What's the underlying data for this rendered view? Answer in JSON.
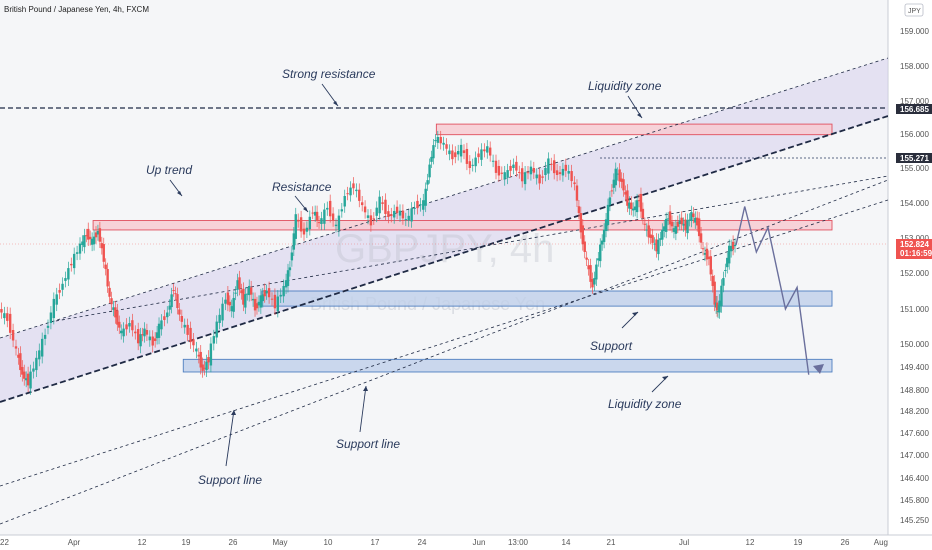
{
  "chart_title": "British Pound / Japanese Yen, 4h, FXCM",
  "watermark": "GBPJPY, 4h",
  "watermark_sub": "British Pound / Japanese Yen",
  "currency_badge": "JPY",
  "chart_data": {
    "type": "line",
    "title": "British Pound / Japanese Yen, 4h, FXCM",
    "x_ticks": [
      "22",
      "Apr",
      "12",
      "19",
      "26",
      "May",
      "10",
      "17",
      "24",
      "Jun",
      "13:00",
      "14",
      "21",
      "Jul",
      "12",
      "19",
      "26",
      "Aug"
    ],
    "y_ticks": [
      159.0,
      158.0,
      157.0,
      156.0,
      155.0,
      154.0,
      153.0,
      152.0,
      151.0,
      150.0,
      149.4,
      148.8,
      148.2,
      147.6,
      147.0,
      146.4,
      145.8,
      145.25
    ],
    "ylim": [
      145.0,
      159.5
    ],
    "current_price": "152.824",
    "countdown": "01:16:59",
    "marked_levels": [
      "156.685",
      "155.271"
    ],
    "price_series": [
      {
        "t": 0.0,
        "v": 151.0
      },
      {
        "t": 0.3,
        "v": 150.7
      },
      {
        "t": 0.6,
        "v": 149.8
      },
      {
        "t": 0.8,
        "v": 149.2
      },
      {
        "t": 1.0,
        "v": 149.0
      },
      {
        "t": 1.3,
        "v": 149.6
      },
      {
        "t": 1.6,
        "v": 150.3
      },
      {
        "t": 1.9,
        "v": 151.2
      },
      {
        "t": 2.2,
        "v": 151.7
      },
      {
        "t": 2.5,
        "v": 152.3
      },
      {
        "t": 2.8,
        "v": 152.8
      },
      {
        "t": 3.0,
        "v": 153.1
      },
      {
        "t": 3.2,
        "v": 152.9
      },
      {
        "t": 3.4,
        "v": 153.2
      },
      {
        "t": 3.6,
        "v": 152.4
      },
      {
        "t": 3.8,
        "v": 151.3
      },
      {
        "t": 4.0,
        "v": 150.8
      },
      {
        "t": 4.2,
        "v": 150.3
      },
      {
        "t": 4.5,
        "v": 150.6
      },
      {
        "t": 4.8,
        "v": 150.1
      },
      {
        "t": 5.0,
        "v": 150.4
      },
      {
        "t": 5.3,
        "v": 150.0
      },
      {
        "t": 5.5,
        "v": 150.5
      },
      {
        "t": 5.8,
        "v": 150.9
      },
      {
        "t": 6.0,
        "v": 151.6
      },
      {
        "t": 6.2,
        "v": 150.8
      },
      {
        "t": 6.5,
        "v": 150.3
      },
      {
        "t": 6.8,
        "v": 149.8
      },
      {
        "t": 7.0,
        "v": 149.3
      },
      {
        "t": 7.2,
        "v": 149.6
      },
      {
        "t": 7.5,
        "v": 150.6
      },
      {
        "t": 7.8,
        "v": 151.3
      },
      {
        "t": 8.0,
        "v": 151.0
      },
      {
        "t": 8.2,
        "v": 151.8
      },
      {
        "t": 8.4,
        "v": 151.2
      },
      {
        "t": 8.6,
        "v": 151.6
      },
      {
        "t": 8.8,
        "v": 151.0
      },
      {
        "t": 9.0,
        "v": 151.3
      },
      {
        "t": 9.2,
        "v": 151.5
      },
      {
        "t": 9.5,
        "v": 151.1
      },
      {
        "t": 9.8,
        "v": 151.6
      },
      {
        "t": 10.0,
        "v": 152.2
      },
      {
        "t": 10.2,
        "v": 153.6
      },
      {
        "t": 10.5,
        "v": 153.1
      },
      {
        "t": 10.8,
        "v": 153.8
      },
      {
        "t": 11.0,
        "v": 153.4
      },
      {
        "t": 11.3,
        "v": 153.9
      },
      {
        "t": 11.6,
        "v": 153.3
      },
      {
        "t": 11.9,
        "v": 154.2
      },
      {
        "t": 12.2,
        "v": 154.5
      },
      {
        "t": 12.5,
        "v": 153.9
      },
      {
        "t": 12.8,
        "v": 153.4
      },
      {
        "t": 13.1,
        "v": 154.1
      },
      {
        "t": 13.4,
        "v": 153.6
      },
      {
        "t": 13.7,
        "v": 153.8
      },
      {
        "t": 14.0,
        "v": 153.5
      },
      {
        "t": 14.3,
        "v": 153.9
      },
      {
        "t": 14.6,
        "v": 154.0
      },
      {
        "t": 14.8,
        "v": 155.1
      },
      {
        "t": 15.0,
        "v": 155.9
      },
      {
        "t": 15.3,
        "v": 155.7
      },
      {
        "t": 15.6,
        "v": 155.3
      },
      {
        "t": 15.9,
        "v": 155.6
      },
      {
        "t": 16.2,
        "v": 155.0
      },
      {
        "t": 16.5,
        "v": 155.4
      },
      {
        "t": 16.8,
        "v": 155.6
      },
      {
        "t": 17.1,
        "v": 154.9
      },
      {
        "t": 17.4,
        "v": 154.8
      },
      {
        "t": 17.7,
        "v": 155.1
      },
      {
        "t": 18.0,
        "v": 154.7
      },
      {
        "t": 18.3,
        "v": 155.0
      },
      {
        "t": 18.6,
        "v": 154.6
      },
      {
        "t": 18.9,
        "v": 155.2
      },
      {
        "t": 19.2,
        "v": 154.8
      },
      {
        "t": 19.5,
        "v": 155.0
      },
      {
        "t": 19.8,
        "v": 154.5
      },
      {
        "t": 20.0,
        "v": 153.2
      },
      {
        "t": 20.2,
        "v": 152.3
      },
      {
        "t": 20.4,
        "v": 151.6
      },
      {
        "t": 20.6,
        "v": 152.5
      },
      {
        "t": 20.8,
        "v": 153.2
      },
      {
        "t": 21.0,
        "v": 154.2
      },
      {
        "t": 21.2,
        "v": 154.9
      },
      {
        "t": 21.4,
        "v": 154.6
      },
      {
        "t": 21.6,
        "v": 154.0
      },
      {
        "t": 21.8,
        "v": 153.8
      },
      {
        "t": 22.0,
        "v": 154.1
      },
      {
        "t": 22.2,
        "v": 153.3
      },
      {
        "t": 22.4,
        "v": 153.0
      },
      {
        "t": 22.6,
        "v": 152.7
      },
      {
        "t": 22.8,
        "v": 153.2
      },
      {
        "t": 23.0,
        "v": 153.6
      },
      {
        "t": 23.2,
        "v": 153.2
      },
      {
        "t": 23.4,
        "v": 153.5
      },
      {
        "t": 23.6,
        "v": 153.3
      },
      {
        "t": 23.8,
        "v": 153.7
      },
      {
        "t": 24.0,
        "v": 153.4
      },
      {
        "t": 24.2,
        "v": 152.6
      },
      {
        "t": 24.4,
        "v": 152.4
      },
      {
        "t": 24.6,
        "v": 151.2
      },
      {
        "t": 24.7,
        "v": 150.9
      },
      {
        "t": 24.9,
        "v": 151.9
      },
      {
        "t": 25.1,
        "v": 152.7
      },
      {
        "t": 25.3,
        "v": 152.8
      }
    ]
  },
  "projection": [
    {
      "t": 25.3,
      "v": 152.8
    },
    {
      "t": 25.6,
      "v": 153.9
    },
    {
      "t": 26.0,
      "v": 152.6
    },
    {
      "t": 26.4,
      "v": 153.3
    },
    {
      "t": 27.0,
      "v": 151.0
    },
    {
      "t": 27.4,
      "v": 151.6
    },
    {
      "t": 27.8,
      "v": 149.2
    }
  ],
  "zones": [
    {
      "id": "liquidity-top",
      "kind": "resistance",
      "v_top": 156.3,
      "v_bot": 155.98,
      "t_start": 15.0,
      "t_end": 28.6
    },
    {
      "id": "resistance",
      "kind": "resistance",
      "v_top": 153.5,
      "v_bot": 153.23,
      "t_start": 3.2,
      "t_end": 28.6
    },
    {
      "id": "support",
      "kind": "support",
      "v_top": 151.5,
      "v_bot": 151.08,
      "t_start": 9.0,
      "t_end": 28.6
    },
    {
      "id": "liquidity-bottom",
      "kind": "support",
      "v_top": 149.6,
      "v_bot": 149.27,
      "t_start": 6.3,
      "t_end": 28.6
    }
  ],
  "annotations": [
    {
      "id": "strong-resistance",
      "text": "Strong resistance"
    },
    {
      "id": "liquidity-zone-top",
      "text": "Liquidity zone"
    },
    {
      "id": "up-trend",
      "text": "Up trend"
    },
    {
      "id": "resistance",
      "text": "Resistance"
    },
    {
      "id": "support",
      "text": "Support"
    },
    {
      "id": "liquidity-zone-bottom",
      "text": "Liquidity zone"
    },
    {
      "id": "support-line-1",
      "text": "Support line"
    },
    {
      "id": "support-line-2",
      "text": "Support line"
    }
  ],
  "colors": {
    "bull": "#26a69a",
    "bear": "#ef5350",
    "resistance_fill": "#f7c9cf",
    "resistance_stroke": "#e0505f",
    "support_fill": "#bfd0ea",
    "support_stroke": "#4f7fc0",
    "channel_fill": "#d6d0ec",
    "line": "#1f2a44",
    "projection": "#6a6f9c",
    "price_badge": "#ef5350",
    "level_badge": "#2a2e3c"
  }
}
